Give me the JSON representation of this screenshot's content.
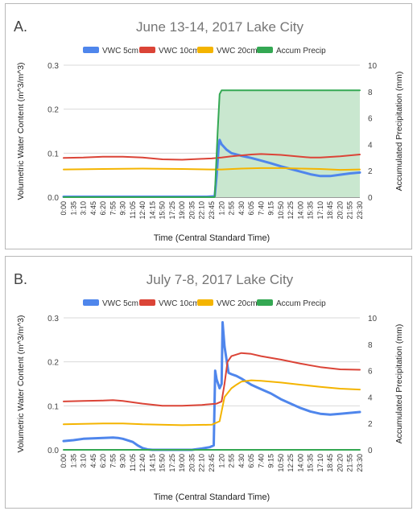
{
  "chart_data": [
    {
      "type": "line",
      "panel_label": "A.",
      "title": "June 13-14, 2017 Lake City",
      "xlabel": "Time (Central Standard Time)",
      "ylabel": "Volumetric Water Content (m^3/m^3)",
      "y2label": "Accumulated Precipitation (mm)",
      "ylim": [
        0,
        0.3
      ],
      "y2lim": [
        0,
        10
      ],
      "yticks": [
        "0.0",
        "0.1",
        "0.2",
        "0.3"
      ],
      "y2ticks": [
        "0",
        "2",
        "4",
        "6",
        "8",
        "10"
      ],
      "categories": [
        "0:00",
        "1:35",
        "3:10",
        "4:45",
        "6:20",
        "7:55",
        "9:30",
        "11:05",
        "12:40",
        "14:15",
        "15:50",
        "17:25",
        "19:00",
        "20:35",
        "22:10",
        "23:45",
        "1:20",
        "2:55",
        "4:30",
        "6:05",
        "7:40",
        "9:15",
        "10:50",
        "12:25",
        "14:00",
        "15:35",
        "17:10",
        "18:45",
        "20:20",
        "21:55",
        "23:30"
      ],
      "legend": "top",
      "series": [
        {
          "name": "VWC 5cm",
          "axis": "left",
          "color": "#4f86ec",
          "width": 3,
          "points": [
            [
              0,
              0.001
            ],
            [
              14.5,
              0.001
            ],
            [
              15.3,
              0.002
            ],
            [
              15.5,
              0.05
            ],
            [
              15.7,
              0.115
            ],
            [
              15.8,
              0.13
            ],
            [
              16,
              0.12
            ],
            [
              16.5,
              0.108
            ],
            [
              17,
              0.1
            ],
            [
              18,
              0.094
            ],
            [
              19,
              0.089
            ],
            [
              20,
              0.083
            ],
            [
              21,
              0.077
            ],
            [
              22,
              0.07
            ],
            [
              23,
              0.064
            ],
            [
              24,
              0.058
            ],
            [
              25,
              0.052
            ],
            [
              26,
              0.048
            ],
            [
              27,
              0.048
            ],
            [
              28,
              0.051
            ],
            [
              29,
              0.054
            ],
            [
              30,
              0.056
            ]
          ]
        },
        {
          "name": "VWC 10cm",
          "axis": "left",
          "color": "#db4437",
          "width": 2,
          "points": [
            [
              0,
              0.089
            ],
            [
              2,
              0.09
            ],
            [
              4,
              0.092
            ],
            [
              6,
              0.092
            ],
            [
              8,
              0.09
            ],
            [
              10,
              0.086
            ],
            [
              12,
              0.085
            ],
            [
              14,
              0.087
            ],
            [
              15,
              0.088
            ],
            [
              16,
              0.09
            ],
            [
              17,
              0.093
            ],
            [
              19,
              0.097
            ],
            [
              20,
              0.098
            ],
            [
              22,
              0.096
            ],
            [
              24,
              0.092
            ],
            [
              25,
              0.09
            ],
            [
              26,
              0.09
            ],
            [
              28,
              0.093
            ],
            [
              30,
              0.097
            ]
          ]
        },
        {
          "name": "VWC 20cm",
          "axis": "left",
          "color": "#f4b400",
          "width": 2,
          "points": [
            [
              0,
              0.063
            ],
            [
              4,
              0.064
            ],
            [
              8,
              0.065
            ],
            [
              12,
              0.064
            ],
            [
              15,
              0.063
            ],
            [
              16,
              0.063
            ],
            [
              18,
              0.065
            ],
            [
              20,
              0.066
            ],
            [
              22,
              0.066
            ],
            [
              24,
              0.065
            ],
            [
              26,
              0.064
            ],
            [
              28,
              0.062
            ],
            [
              30,
              0.063
            ]
          ]
        },
        {
          "name": "Accum Precip",
          "axis": "right",
          "color": "#34a853",
          "width": 2,
          "area": true,
          "area_color": "#c9e7cf",
          "points": [
            [
              0,
              0
            ],
            [
              15.3,
              0
            ],
            [
              15.6,
              5
            ],
            [
              15.8,
              7.8
            ],
            [
              16,
              8.1
            ],
            [
              30,
              8.1
            ]
          ]
        }
      ]
    },
    {
      "type": "line",
      "panel_label": "B.",
      "title": "July 7-8, 2017 Lake City",
      "xlabel": "Time (Central Standard Time)",
      "ylabel": "Volumetric Water Content (m^3/m^3)",
      "y2label": "Accumulated Precipitation (mm)",
      "ylim": [
        0,
        0.3
      ],
      "y2lim": [
        0,
        10
      ],
      "yticks": [
        "0.0",
        "0.1",
        "0.2",
        "0.3"
      ],
      "y2ticks": [
        "0",
        "2",
        "4",
        "6",
        "8",
        "10"
      ],
      "categories": [
        "0:00",
        "1:35",
        "3:10",
        "4:45",
        "6:20",
        "7:55",
        "9:30",
        "11:05",
        "12:40",
        "14:15",
        "15:50",
        "17:25",
        "19:00",
        "20:35",
        "22:10",
        "23:45",
        "1:20",
        "2:55",
        "4:30",
        "6:05",
        "7:40",
        "9:15",
        "10:50",
        "12:25",
        "14:00",
        "15:35",
        "17:10",
        "18:45",
        "20:20",
        "21:55",
        "23:30"
      ],
      "legend": "top",
      "series": [
        {
          "name": "VWC 5cm",
          "axis": "left",
          "color": "#4f86ec",
          "width": 3,
          "points": [
            [
              0,
              0.02
            ],
            [
              1,
              0.022
            ],
            [
              2,
              0.025
            ],
            [
              3,
              0.026
            ],
            [
              4,
              0.027
            ],
            [
              5,
              0.028
            ],
            [
              5.5,
              0.027
            ],
            [
              6,
              0.025
            ],
            [
              7,
              0.018
            ],
            [
              7.5,
              0.01
            ],
            [
              8,
              0.004
            ],
            [
              8.5,
              0.001
            ],
            [
              9,
              0
            ],
            [
              13,
              0
            ],
            [
              14,
              0.003
            ],
            [
              14.8,
              0.006
            ],
            [
              15.2,
              0.01
            ],
            [
              15.35,
              0.18
            ],
            [
              15.5,
              0.16
            ],
            [
              15.8,
              0.14
            ],
            [
              16.0,
              0.15
            ],
            [
              16.1,
              0.29
            ],
            [
              16.3,
              0.235
            ],
            [
              16.5,
              0.205
            ],
            [
              16.7,
              0.175
            ],
            [
              17,
              0.172
            ],
            [
              17.5,
              0.168
            ],
            [
              18,
              0.162
            ],
            [
              19,
              0.148
            ],
            [
              20,
              0.138
            ],
            [
              21,
              0.128
            ],
            [
              22,
              0.115
            ],
            [
              23,
              0.105
            ],
            [
              24,
              0.095
            ],
            [
              25,
              0.087
            ],
            [
              26,
              0.082
            ],
            [
              27,
              0.08
            ],
            [
              28,
              0.082
            ],
            [
              29,
              0.084
            ],
            [
              30,
              0.086
            ]
          ]
        },
        {
          "name": "VWC 10cm",
          "axis": "left",
          "color": "#db4437",
          "width": 2,
          "points": [
            [
              0,
              0.11
            ],
            [
              2,
              0.111
            ],
            [
              4,
              0.112
            ],
            [
              5,
              0.113
            ],
            [
              6,
              0.111
            ],
            [
              8,
              0.105
            ],
            [
              10,
              0.1
            ],
            [
              12,
              0.1
            ],
            [
              14,
              0.102
            ],
            [
              15.5,
              0.105
            ],
            [
              16,
              0.11
            ],
            [
              16.3,
              0.15
            ],
            [
              16.6,
              0.2
            ],
            [
              17,
              0.213
            ],
            [
              18,
              0.22
            ],
            [
              19,
              0.218
            ],
            [
              20,
              0.213
            ],
            [
              22,
              0.205
            ],
            [
              24,
              0.196
            ],
            [
              26,
              0.188
            ],
            [
              28,
              0.183
            ],
            [
              30,
              0.182
            ]
          ]
        },
        {
          "name": "VWC 20cm",
          "axis": "left",
          "color": "#f4b400",
          "width": 2,
          "points": [
            [
              0,
              0.058
            ],
            [
              4,
              0.06
            ],
            [
              6,
              0.06
            ],
            [
              8,
              0.058
            ],
            [
              12,
              0.056
            ],
            [
              15,
              0.057
            ],
            [
              15.8,
              0.065
            ],
            [
              16.3,
              0.12
            ],
            [
              17,
              0.14
            ],
            [
              17.5,
              0.148
            ],
            [
              18,
              0.155
            ],
            [
              19,
              0.158
            ],
            [
              20,
              0.157
            ],
            [
              22,
              0.153
            ],
            [
              24,
              0.148
            ],
            [
              26,
              0.143
            ],
            [
              28,
              0.139
            ],
            [
              30,
              0.137
            ]
          ]
        },
        {
          "name": "Accum Precip",
          "axis": "right",
          "color": "#34a853",
          "width": 2,
          "points": [
            [
              0,
              0
            ],
            [
              30,
              0
            ]
          ]
        }
      ]
    }
  ]
}
